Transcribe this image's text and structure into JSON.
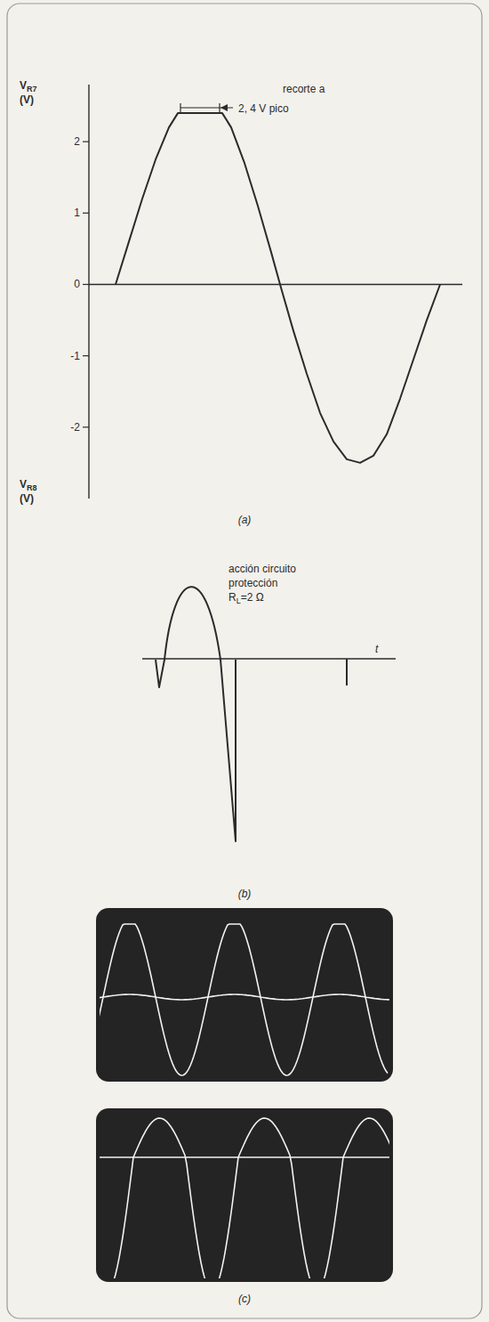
{
  "chart_data": {
    "type": "line",
    "y_label": "VR7 (V)",
    "y_label_bottom": "VR8 (V)",
    "annotation": [
      "recorte a",
      "2, 4 V pico"
    ],
    "panel_label": "(a)",
    "x": [
      30,
      45,
      60,
      75,
      90,
      100,
      150,
      160,
      175,
      190,
      205,
      215,
      230,
      245,
      260,
      275,
      290,
      305,
      320,
      335,
      350,
      365,
      380,
      395
    ],
    "values": [
      0,
      0.6,
      1.2,
      1.75,
      2.2,
      2.4,
      2.4,
      2.2,
      1.7,
      1.1,
      0.45,
      0,
      -0.65,
      -1.25,
      -1.8,
      -2.2,
      -2.45,
      -2.5,
      -2.4,
      -2.1,
      -1.6,
      -1.05,
      -0.5,
      0
    ],
    "color": "#2b2b2b",
    "xlim": [
      0,
      420
    ],
    "ylim": [
      -3,
      2.8
    ],
    "yticks": [
      -2,
      -1,
      0,
      1,
      2
    ],
    "tick_labels": "y",
    "grid": false
  },
  "panel_b": {
    "annotation": [
      "acción circuito",
      "protección"
    ],
    "load_label": "RL=2 Ω",
    "axis_label": "t",
    "panel_label": "(b)"
  },
  "panel_c": {
    "panel_label": "(c)"
  }
}
